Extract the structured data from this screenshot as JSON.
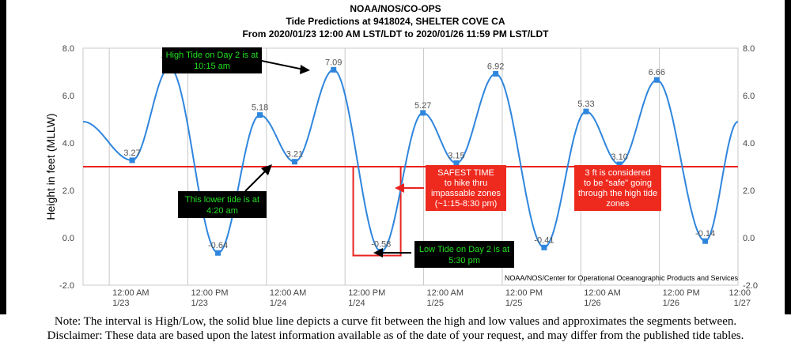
{
  "header": {
    "line1": "NOAA/NOS/CO-OPS",
    "line2": "Tide Predictions at 9418024, SHELTER COVE CA",
    "line3": "From 2020/01/23 12:00 AM LST/LDT to 2020/01/26 11:59 PM LST/LDT"
  },
  "credit": "NOAA/NOS/Center for Operational Oceanographic Products and Services",
  "notes": {
    "note": "Note: The interval is High/Low, the solid blue line depicts a curve fit between the high and low values and approximates the segments between.",
    "disclaimer": "Disclaimer: These data are based upon the latest information available as of the date of your request, and may differ from the published tide tables."
  },
  "annotations": {
    "high_day2": [
      "High Tide on Day 2 is at",
      "10:15 am"
    ],
    "lower_tide": [
      "This lower tide is at",
      "4:20 am"
    ],
    "low_day2": [
      "Low Tide on Day 2 is at",
      "5:30 pm"
    ],
    "safest_time": [
      "SAFEST TIME",
      "to hike thru",
      "impassable zones",
      "(~1:15-8:30 pm)"
    ],
    "safe_threshold": [
      "3 ft is considered",
      "to be \"safe\" going",
      "through the high tide",
      "zones"
    ]
  },
  "colors": {
    "series": "#2f86dd",
    "threshold": "#e8231f",
    "callout_black_bg": "#000000",
    "callout_black_text": "#22e022",
    "callout_red_bg": "#ee2a1f",
    "callout_red_text": "#ffffff"
  },
  "chart_data": {
    "type": "line",
    "ylabel": "Height in feet (MLLW)",
    "ylim": [
      -2.0,
      8.0
    ],
    "yticks": [
      "-2.0",
      "0.0",
      "2.0",
      "4.0",
      "6.0",
      "8.0"
    ],
    "xlim_hours": [
      -4,
      96
    ],
    "xticks": [
      {
        "hour": 0,
        "time": "12:00 AM",
        "date": "1/23"
      },
      {
        "hour": 12,
        "time": "12:00 PM",
        "date": "1/23"
      },
      {
        "hour": 24,
        "time": "12:00 AM",
        "date": "1/24"
      },
      {
        "hour": 36,
        "time": "12:00 PM",
        "date": "1/24"
      },
      {
        "hour": 48,
        "time": "12:00 AM",
        "date": "1/25"
      },
      {
        "hour": 60,
        "time": "12:00 PM",
        "date": "1/25"
      },
      {
        "hour": 72,
        "time": "12:00 AM",
        "date": "1/26"
      },
      {
        "hour": 84,
        "time": "12:00 PM",
        "date": "1/26"
      },
      {
        "hour": 96,
        "time": "12:00",
        "date": "1/27"
      }
    ],
    "series": [
      {
        "points": [
          {
            "hour": 3.5,
            "value": 3.27,
            "label": "3.27"
          },
          {
            "hour": 9.2,
            "value": 7.18,
            "label": "7.18"
          },
          {
            "hour": 16.6,
            "value": -0.64,
            "label": "-0.64"
          },
          {
            "hour": 23.0,
            "value": 5.18,
            "label": "5.18"
          },
          {
            "hour": 28.3,
            "value": 3.21,
            "label": "3.21"
          },
          {
            "hour": 34.25,
            "value": 7.09,
            "label": "7.09"
          },
          {
            "hour": 41.5,
            "value": -0.58,
            "label": "-0.58"
          },
          {
            "hour": 47.9,
            "value": 5.27,
            "label": "5.27"
          },
          {
            "hour": 53.0,
            "value": 3.15,
            "label": "3.15"
          },
          {
            "hour": 59.0,
            "value": 6.92,
            "label": "6.92"
          },
          {
            "hour": 66.4,
            "value": -0.41,
            "label": "-0.41"
          },
          {
            "hour": 72.8,
            "value": 5.33,
            "label": "5.33"
          },
          {
            "hour": 77.9,
            "value": 3.1,
            "label": "3.10"
          },
          {
            "hour": 83.6,
            "value": 6.66,
            "label": "6.66"
          },
          {
            "hour": 91.0,
            "value": -0.14,
            "label": "-0.14"
          }
        ]
      }
    ],
    "start": {
      "hour": -4,
      "value": 4.9
    },
    "end": {
      "hour": 96,
      "value": 4.9
    },
    "threshold_ft": 3.0,
    "highlight_window_hours": [
      37.25,
      44.5
    ],
    "grid": "vertical"
  }
}
